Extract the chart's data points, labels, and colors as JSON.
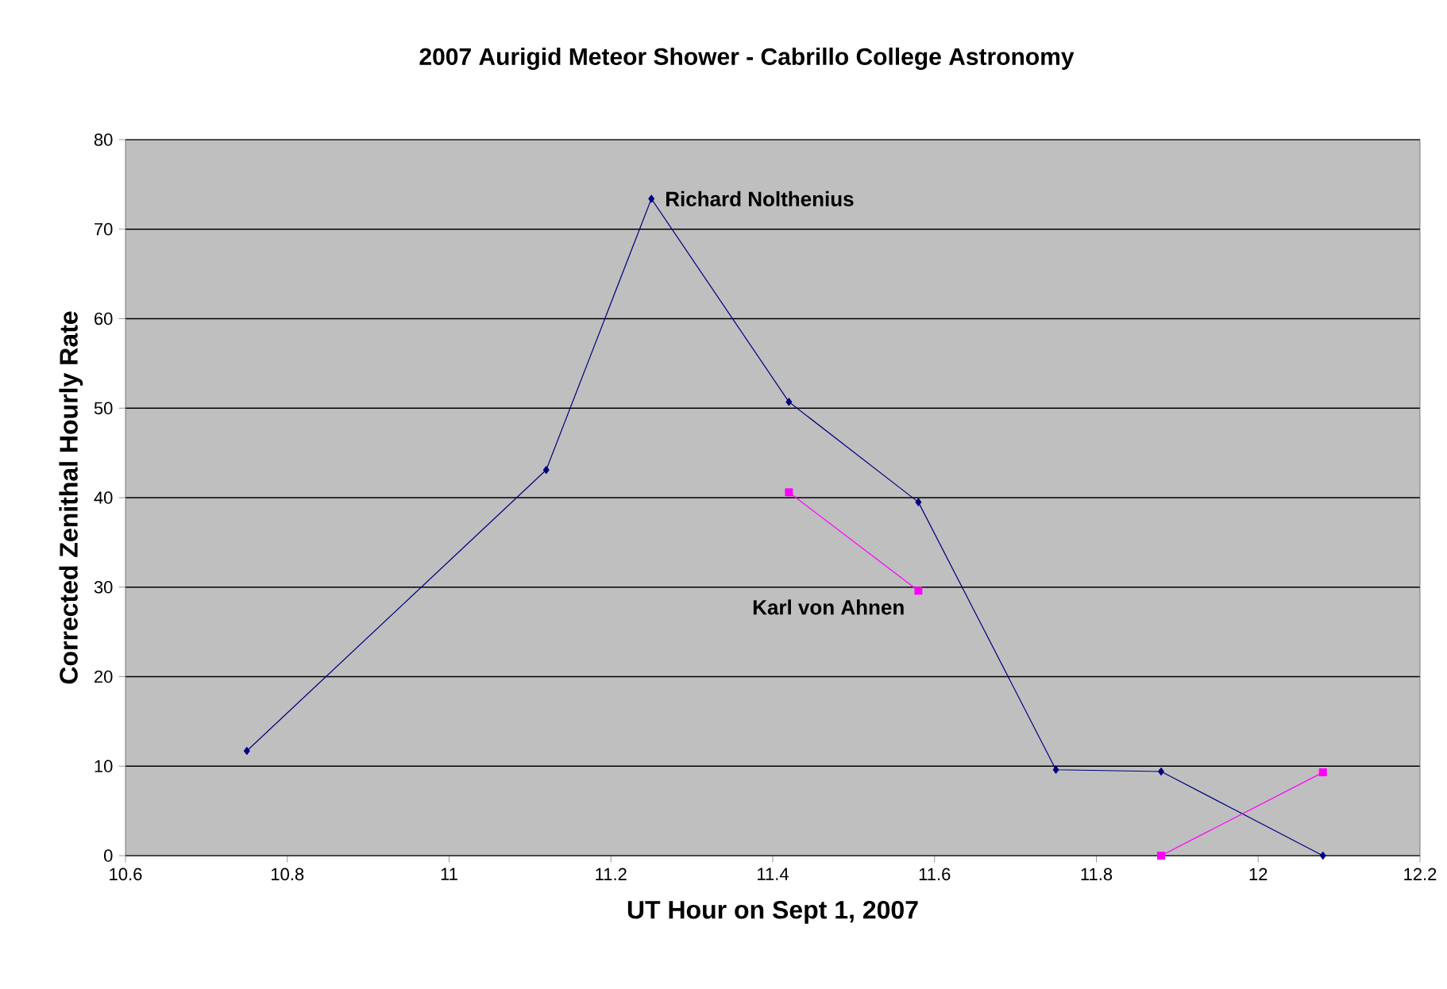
{
  "chart_data": {
    "type": "line",
    "title": "2007 Aurigid Meteor Shower - Cabrillo College Astronomy",
    "xlabel": "UT Hour on Sept 1, 2007",
    "ylabel": "Corrected Zenithal Hourly Rate",
    "xlim": [
      10.6,
      12.2
    ],
    "xticks": [
      10.6,
      10.8,
      11,
      11.2,
      11.4,
      11.6,
      11.8,
      12,
      12.2
    ],
    "ylim": [
      0,
      80
    ],
    "yticks": [
      0,
      10,
      20,
      30,
      40,
      50,
      60,
      70,
      80
    ],
    "grid": "y",
    "line_style": "solid",
    "series": [
      {
        "name": "Richard Nolthenius",
        "color": "#000080",
        "marker": "diamond",
        "x": [
          10.75,
          11.12,
          11.25,
          11.42,
          11.58,
          11.75,
          11.88,
          12.08
        ],
        "values": [
          11.7,
          43.1,
          73.4,
          50.7,
          39.5,
          9.6,
          9.4,
          0
        ]
      },
      {
        "name": "Karl von Ahnen",
        "color": "#ff00ff",
        "marker": "square",
        "x": [
          11.42,
          11.58,
          11.75,
          11.88,
          12.08
        ],
        "values": [
          40.6,
          29.6,
          null,
          0,
          9.3
        ]
      }
    ]
  }
}
